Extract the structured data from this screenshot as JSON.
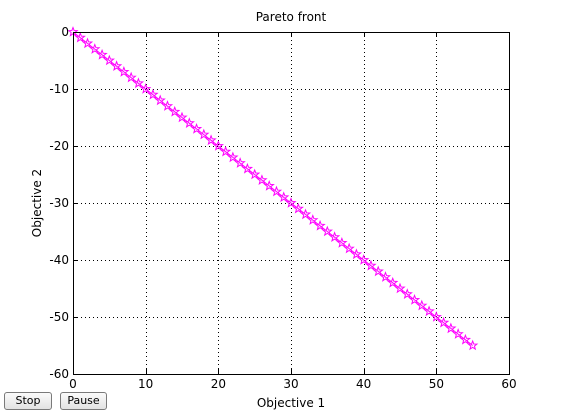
{
  "window": {
    "buttons": {
      "stop_label": "Stop",
      "pause_label": "Pause"
    }
  },
  "chart_data": {
    "type": "scatter",
    "title": "Pareto front",
    "xlabel": "Objective 1",
    "ylabel": "Objective 2",
    "xlim": [
      0,
      60
    ],
    "ylim": [
      -60,
      0
    ],
    "xticks": [
      0,
      10,
      20,
      30,
      40,
      50,
      60
    ],
    "yticks": [
      0,
      -10,
      -20,
      -30,
      -40,
      -50,
      -60
    ],
    "grid": true,
    "grid_style": "dotted",
    "marker": "pentagram",
    "color": "#ff00ff",
    "series": [
      {
        "x": [
          0,
          1,
          2,
          3,
          4,
          5,
          6,
          7,
          8,
          9,
          10,
          11,
          12,
          13,
          14,
          15,
          16,
          17,
          18,
          19,
          20,
          21,
          22,
          23,
          24,
          25,
          26,
          27,
          28,
          29,
          30,
          31,
          32,
          33,
          34,
          35,
          36,
          37,
          38,
          39,
          40,
          41,
          42,
          43,
          44,
          45,
          46,
          47,
          48,
          49,
          50,
          51,
          52,
          53,
          54,
          55
        ],
        "y": [
          0,
          -1,
          -2,
          -3,
          -4,
          -5,
          -6,
          -7,
          -8,
          -9,
          -10,
          -11,
          -12,
          -13,
          -14,
          -15,
          -16,
          -17,
          -18,
          -19,
          -20,
          -21,
          -22,
          -23,
          -24,
          -25,
          -26,
          -27,
          -28,
          -29,
          -30,
          -31,
          -32,
          -33,
          -34,
          -35,
          -36,
          -37,
          -38,
          -39,
          -40,
          -41,
          -42,
          -43,
          -44,
          -45,
          -46,
          -47,
          -48,
          -49,
          -50,
          -51,
          -52,
          -53,
          -54,
          -55
        ]
      }
    ]
  }
}
